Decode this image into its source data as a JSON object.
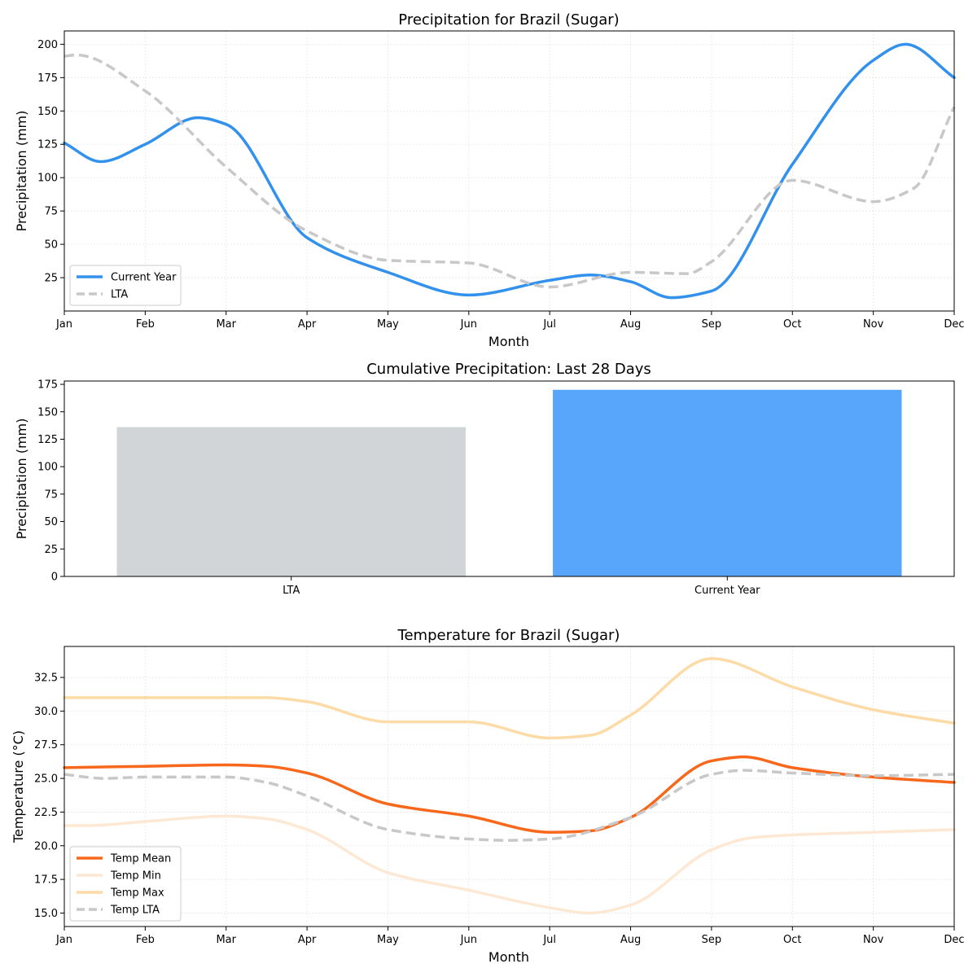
{
  "chart_data": [
    {
      "type": "line",
      "title": "Precipitation for Brazil (Sugar)",
      "xlabel": "Month",
      "ylabel": "Precipitation (mm)",
      "categories": [
        "Jan",
        "Feb",
        "Mar",
        "Apr",
        "May",
        "Jun",
        "Jul",
        "Aug",
        "Sep",
        "Oct",
        "Nov",
        "Dec"
      ],
      "xlim": [
        0,
        11
      ],
      "ylim": [
        0,
        210
      ],
      "yticks": [
        25,
        50,
        75,
        100,
        125,
        150,
        175,
        200
      ],
      "grid": true,
      "legend": "lower-left",
      "series": [
        {
          "name": "Current Year",
          "color": "#3391ee",
          "style": "solid",
          "x": [
            0,
            0.45,
            1,
            1.65,
            2,
            3,
            4,
            5,
            6,
            6.5,
            7,
            7.5,
            8,
            9,
            10,
            10.4,
            11
          ],
          "values": [
            126,
            112,
            125,
            145,
            140,
            55,
            29,
            12,
            23,
            27,
            22,
            10,
            15,
            110,
            188,
            200,
            175
          ]
        },
        {
          "name": "LTA",
          "color": "#c8c8c8",
          "style": "dashed",
          "x": [
            0,
            0.15,
            1,
            2,
            3,
            4,
            5,
            6,
            7,
            7.7,
            8,
            9,
            10,
            10.5,
            11
          ],
          "values": [
            191,
            192,
            165,
            108,
            60,
            38,
            36,
            18,
            29,
            28,
            37,
            98,
            82,
            92,
            153
          ]
        }
      ]
    },
    {
      "type": "bar",
      "title": "Cumulative Precipitation: Last 28 Days",
      "xlabel": "",
      "ylabel": "Precipitation (mm)",
      "categories": [
        "LTA",
        "Current Year"
      ],
      "values": [
        136,
        170
      ],
      "colors": [
        "#d1d5d8",
        "#58a6fb"
      ],
      "ylim": [
        0,
        178
      ],
      "yticks": [
        0,
        25,
        50,
        75,
        100,
        125,
        150,
        175
      ]
    },
    {
      "type": "line",
      "title": "Temperature for Brazil (Sugar)",
      "xlabel": "Month",
      "ylabel": "Temperature (°C)",
      "categories": [
        "Jan",
        "Feb",
        "Mar",
        "Apr",
        "May",
        "Jun",
        "Jul",
        "Aug",
        "Sep",
        "Oct",
        "Nov",
        "Dec"
      ],
      "xlim": [
        0,
        11
      ],
      "ylim": [
        14,
        34.8
      ],
      "yticks": [
        15.0,
        17.5,
        20.0,
        22.5,
        25.0,
        27.5,
        30.0,
        32.5
      ],
      "yticklabels": [
        "15.0",
        "17.5",
        "20.0",
        "22.5",
        "25.0",
        "27.5",
        "30.0",
        "32.5"
      ],
      "grid": true,
      "legend": "lower-left",
      "series": [
        {
          "name": "Temp Mean",
          "color": "#f7681c",
          "style": "solid",
          "x": [
            0,
            1,
            2,
            2.5,
            3,
            4,
            5,
            6,
            6.5,
            7,
            8,
            8.4,
            9,
            10,
            11
          ],
          "values": [
            25.8,
            25.9,
            26.0,
            25.9,
            25.4,
            23.1,
            22.2,
            21.0,
            21.1,
            22.1,
            26.3,
            26.6,
            25.8,
            25.1,
            24.7
          ]
        },
        {
          "name": "Temp Min",
          "color": "#fde8d4",
          "style": "solid",
          "x": [
            0,
            0.3,
            1,
            2,
            2.5,
            3,
            4,
            5,
            6,
            6.5,
            7,
            8,
            8.5,
            9,
            10,
            11
          ],
          "values": [
            21.5,
            21.5,
            21.8,
            22.2,
            22.0,
            21.2,
            18.0,
            16.7,
            15.4,
            15.0,
            15.6,
            19.7,
            20.6,
            20.8,
            21.0,
            21.2
          ]
        },
        {
          "name": "Temp Max",
          "color": "#fcdba7",
          "style": "solid",
          "x": [
            0,
            1,
            2,
            2.5,
            3,
            4,
            5,
            6,
            6.5,
            7,
            8,
            9,
            10,
            11
          ],
          "values": [
            31.0,
            31.0,
            31.0,
            31.0,
            30.7,
            29.2,
            29.2,
            28.0,
            28.2,
            29.7,
            33.9,
            31.8,
            30.1,
            29.1
          ]
        },
        {
          "name": "Temp LTA",
          "color": "#c8c8c8",
          "style": "dashed",
          "x": [
            0,
            0.5,
            1,
            2,
            2.5,
            3,
            4,
            5,
            5.5,
            6,
            7,
            8,
            8.4,
            9,
            10,
            11
          ],
          "values": [
            25.3,
            25.0,
            25.1,
            25.1,
            24.7,
            23.7,
            21.2,
            20.5,
            20.4,
            20.5,
            22.1,
            25.3,
            25.6,
            25.4,
            25.2,
            25.3
          ]
        }
      ]
    }
  ]
}
